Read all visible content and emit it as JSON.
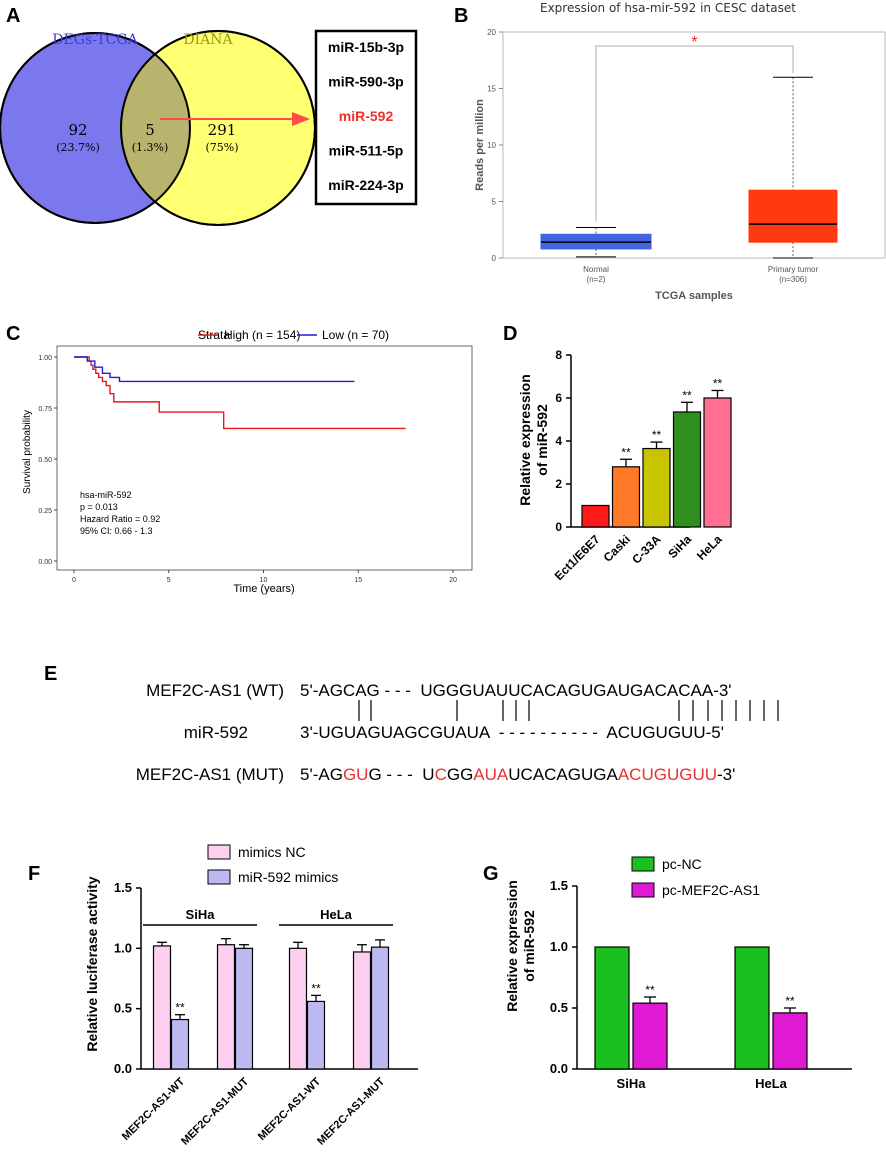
{
  "panel_labels": [
    "A",
    "B",
    "C",
    "D",
    "E",
    "F",
    "G"
  ],
  "panelA": {
    "left_title": "DEGs-TCGA",
    "right_title": "DIANA",
    "left_count": "92",
    "left_pct": "(23.7%)",
    "overlap_count": "5",
    "overlap_pct": "(1.3%)",
    "right_count": "291",
    "right_pct": "(75%)",
    "mirnas": [
      "miR-15b-3p",
      "miR-590-3p",
      "miR-592",
      "miR-511-5p",
      "miR-224-3p"
    ],
    "highlight": "miR-592",
    "colors": {
      "left": "#7b78ee",
      "right": "#ffff72",
      "overlap": "#b8b46e",
      "arrow": "#ff4a4a",
      "highlight": "#e8312e"
    }
  },
  "chart_data": [
    {
      "id": "B",
      "type": "box",
      "title": "Expression of hsa-mir-592 in CESC dataset",
      "ylabel": "Reads per million",
      "xlabel": "TCGA samples",
      "ylim": [
        0,
        20
      ],
      "yticks": [
        0,
        5,
        10,
        15,
        20
      ],
      "significance": "*",
      "groups": [
        {
          "name": "Normal",
          "n": "(n=2)",
          "min": 0.1,
          "q1": 0.8,
          "median": 1.4,
          "q3": 2.1,
          "max": 2.7,
          "color": "#3f66e0"
        },
        {
          "name": "Primary tumor",
          "n": "(n=306)",
          "min": 0,
          "q1": 1.4,
          "median": 3.0,
          "q3": 6.0,
          "max": 16.0,
          "color": "#ff3a10"
        }
      ]
    },
    {
      "id": "C",
      "type": "line",
      "subtype": "kaplan-meier",
      "xlabel": "Time (years)",
      "ylabel": "Survival probability",
      "xlim": [
        0,
        20
      ],
      "ylim": [
        0,
        1
      ],
      "xticks": [
        0,
        5,
        10,
        15,
        20
      ],
      "yticks": [
        0.0,
        0.25,
        0.5,
        0.75,
        1.0
      ],
      "legend_title": "Strata",
      "series": [
        {
          "name": "High (n = 154)",
          "color": "#e41a1c",
          "x": [
            0,
            0.8,
            0.9,
            1.0,
            1.15,
            1.3,
            1.5,
            1.7,
            1.9,
            2.1,
            4.5,
            7.9,
            17.5
          ],
          "y": [
            1.0,
            0.98,
            0.96,
            0.94,
            0.92,
            0.9,
            0.88,
            0.86,
            0.82,
            0.78,
            0.73,
            0.65,
            0.65
          ]
        },
        {
          "name": "Low (n = 70)",
          "color": "#1f1fd8",
          "x": [
            0,
            0.7,
            1.1,
            1.5,
            1.9,
            2.4,
            14.8
          ],
          "y": [
            1.0,
            0.98,
            0.95,
            0.92,
            0.9,
            0.88,
            0.88
          ]
        }
      ],
      "annotations": [
        "hsa-miR-592",
        "p = 0.013",
        "Hazard Ratio = 0.92",
        "95% CI: 0.66 - 1.3"
      ]
    },
    {
      "id": "D",
      "type": "bar",
      "ylabel": [
        "Relative expression",
        "of miR-592"
      ],
      "ylim": [
        0,
        8
      ],
      "yticks": [
        0,
        2,
        4,
        6,
        8
      ],
      "categories": [
        "Ect1/E6E7",
        "Caski",
        "C-33A",
        "SiHa",
        "HeLa"
      ],
      "values": [
        1.0,
        2.8,
        3.65,
        5.35,
        6.0
      ],
      "errors": [
        0,
        0.35,
        0.3,
        0.45,
        0.35
      ],
      "labels": [
        "",
        "**",
        "**",
        "**",
        "**"
      ],
      "colors": [
        "#ff1a1a",
        "#ff7a28",
        "#c8c500",
        "#2f8f1e",
        "#ff6f91"
      ]
    },
    {
      "id": "F",
      "type": "bar",
      "ylabel": "Relative luciferase activity",
      "ylim": [
        0,
        1.5
      ],
      "yticks": [
        0.0,
        0.5,
        1.0,
        1.5
      ],
      "groups": [
        "SiHa",
        "HeLa"
      ],
      "categories": [
        "MEF2C-AS1-WT",
        "MEF2C-AS1-MUT",
        "MEF2C-AS1-WT",
        "MEF2C-AS1-MUT"
      ],
      "series": [
        {
          "name": "mimics NC",
          "color": "#fccff0",
          "values": [
            1.02,
            1.03,
            1.0,
            0.97
          ],
          "errors": [
            0.03,
            0.05,
            0.05,
            0.06
          ],
          "labels": [
            "",
            "",
            "",
            ""
          ]
        },
        {
          "name": "miR-592 mimics",
          "color": "#bcb9f2",
          "values": [
            0.41,
            1.0,
            0.56,
            1.01
          ],
          "errors": [
            0.04,
            0.03,
            0.05,
            0.06
          ],
          "labels": [
            "**",
            "",
            "**",
            ""
          ]
        }
      ]
    },
    {
      "id": "G",
      "type": "bar",
      "ylabel": [
        "Relative expression",
        "of miR-592"
      ],
      "ylim": [
        0,
        1.5
      ],
      "yticks": [
        0.0,
        0.5,
        1.0,
        1.5
      ],
      "categories": [
        "SiHa",
        "HeLa"
      ],
      "series": [
        {
          "name": "pc-NC",
          "color": "#19c01f",
          "values": [
            1.0,
            1.0
          ],
          "errors": [
            0,
            0
          ],
          "labels": [
            "",
            ""
          ]
        },
        {
          "name": "pc-MEF2C-AS1",
          "color": "#e01ad2",
          "values": [
            0.54,
            0.46
          ],
          "errors": [
            0.05,
            0.04
          ],
          "labels": [
            "**",
            "**"
          ]
        }
      ]
    }
  ],
  "panelE": {
    "rows": [
      {
        "label": "MEF2C-AS1 (WT)",
        "segments": [
          {
            "t": "5'-AGCAG",
            "c": "#000000"
          },
          {
            "t": " - - -  ",
            "c": "#000000"
          },
          {
            "t": "UGGGUAUUCACAGUGAUGACACAA-3'",
            "c": "#000000"
          }
        ]
      },
      {
        "label": "miR-592",
        "segments": [
          {
            "t": "3'-UGUAGUAGCGUAUA",
            "c": "#000000"
          },
          {
            "t": "  - - - - - - - - - -  ",
            "c": "#000000"
          },
          {
            "t": "ACUGUGUU-5'",
            "c": "#000000"
          }
        ]
      },
      {
        "label": "MEF2C-AS1 (MUT)",
        "segments": [
          {
            "t": "5'-AG",
            "c": "#000000"
          },
          {
            "t": "GU",
            "c": "#e8312e"
          },
          {
            "t": "G",
            "c": "#000000"
          },
          {
            "t": " - - -  ",
            "c": "#000000"
          },
          {
            "t": "U",
            "c": "#000000"
          },
          {
            "t": "C",
            "c": "#e8312e"
          },
          {
            "t": "GG",
            "c": "#000000"
          },
          {
            "t": "AUA",
            "c": "#e8312e"
          },
          {
            "t": "UCACAGUGA",
            "c": "#000000"
          },
          {
            "t": "ACUGUGUU",
            "c": "#e8312e"
          },
          {
            "t": "-3'",
            "c": "#000000"
          }
        ]
      }
    ]
  }
}
